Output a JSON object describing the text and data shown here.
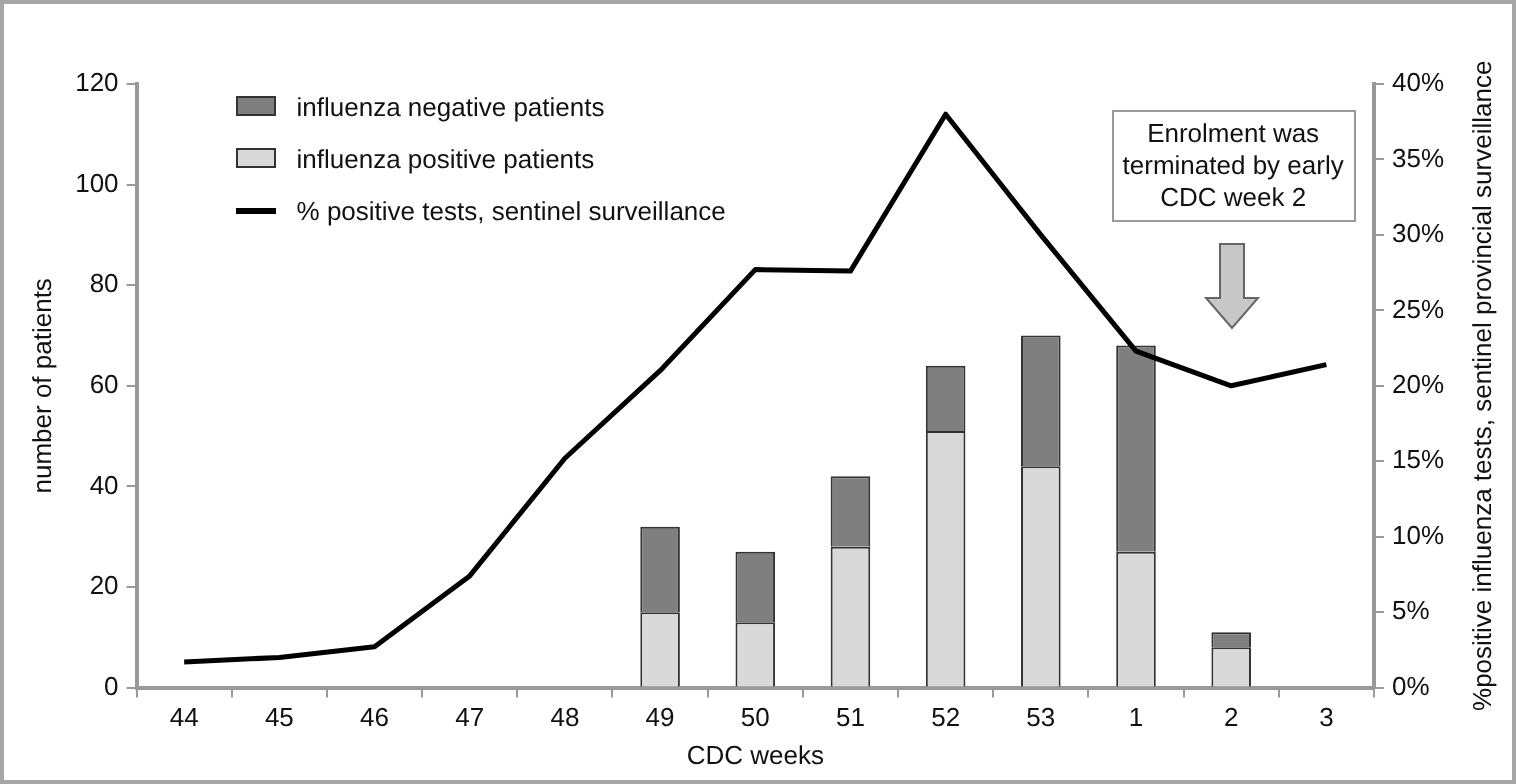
{
  "chart_data": {
    "type": "bar",
    "stacked": true,
    "xlabel": "CDC weeks",
    "ylabel": "number of patients",
    "y2label": "%positive influenza tests, sentinel provincial surveillance",
    "categories": [
      "44",
      "45",
      "46",
      "47",
      "48",
      "49",
      "50",
      "51",
      "52",
      "53",
      "1",
      "2",
      "3"
    ],
    "series": [
      {
        "name": "influenza positive patients",
        "color": "#d9d9d9",
        "values": [
          null,
          null,
          null,
          null,
          null,
          15,
          13,
          28,
          51,
          44,
          27,
          8,
          null
        ]
      },
      {
        "name": "influenza negative patients",
        "color": "#7f7f7f",
        "values": [
          null,
          null,
          null,
          null,
          null,
          17,
          14,
          14,
          13,
          26,
          41,
          3,
          null
        ]
      },
      {
        "name": "% positive tests, sentinel surveillance",
        "type": "line",
        "axis": "y2",
        "color": "#000000",
        "values": [
          1.7,
          2.0,
          2.7,
          7.4,
          15.2,
          21,
          27.7,
          27.6,
          38,
          30,
          22.3,
          20,
          21.4
        ]
      }
    ],
    "ylim": [
      0,
      120
    ],
    "yticks": [
      0,
      20,
      40,
      60,
      80,
      100,
      120
    ],
    "y2lim": [
      0,
      40
    ],
    "y2ticks": [
      {
        "value": 0,
        "label": "0%"
      },
      {
        "value": 5,
        "label": "5%"
      },
      {
        "value": 10,
        "label": "10%"
      },
      {
        "value": 15,
        "label": "15%"
      },
      {
        "value": 20,
        "label": "20%"
      },
      {
        "value": 25,
        "label": "25%"
      },
      {
        "value": 30,
        "label": "30%"
      },
      {
        "value": 35,
        "label": "35%"
      },
      {
        "value": 40,
        "label": "40%"
      }
    ],
    "grid": false,
    "legend": "top left",
    "marker": "none",
    "line_style": "solid",
    "annotations": [
      "Enrolment was terminated by early CDC week 2"
    ]
  }
}
